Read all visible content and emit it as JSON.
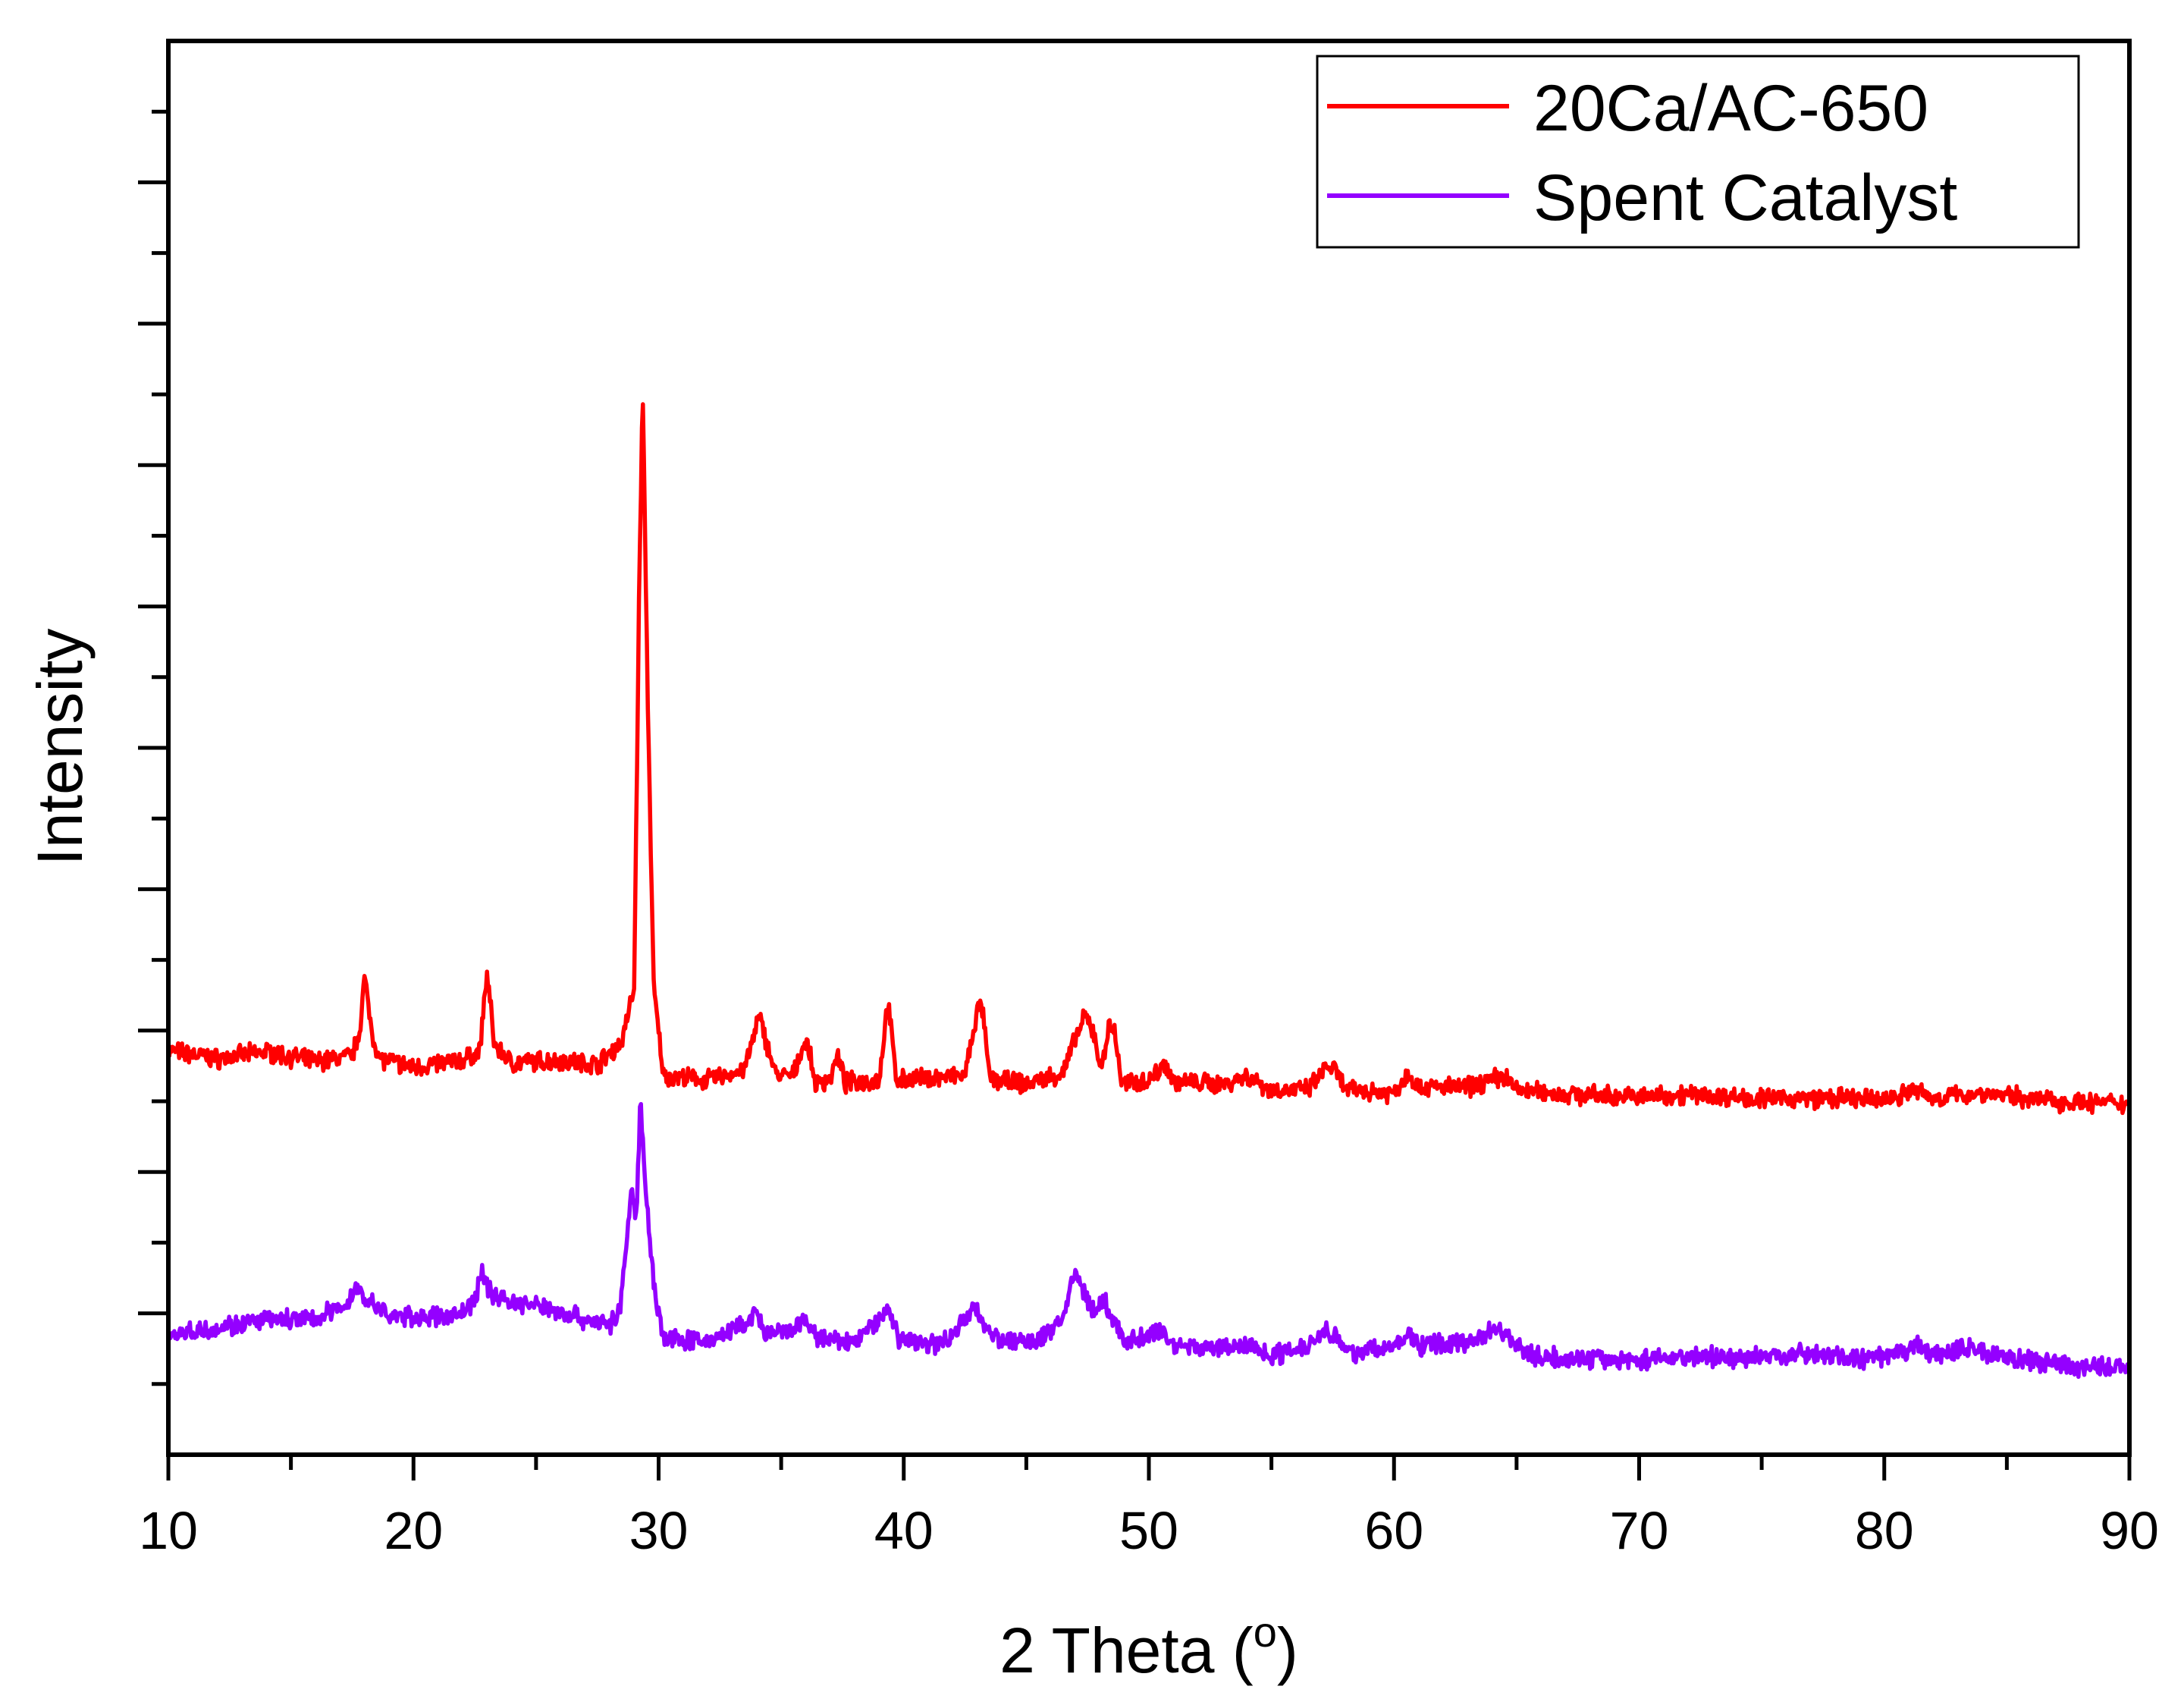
{
  "chart_data": {
    "type": "line",
    "title": "",
    "xlabel": "2 Theta (",
    "xlabel_superscript": "o",
    "xlabel_suffix": ")",
    "ylabel": "Intensity",
    "xlim": [
      10,
      90
    ],
    "ylim": [
      0,
      1000
    ],
    "x_ticks": [
      10,
      20,
      30,
      40,
      50,
      60,
      70,
      80,
      90
    ],
    "y_tick_labels_shown": false,
    "grid": false,
    "legend_position": "top-right",
    "series": [
      {
        "name": "20Ca/AC-650",
        "color": "#ff0000",
        "points": [
          [
            10,
            286
          ],
          [
            12,
            280
          ],
          [
            14,
            285
          ],
          [
            16,
            278
          ],
          [
            17.5,
            282
          ],
          [
            17.8,
            300
          ],
          [
            18,
            337
          ],
          [
            18.3,
            300
          ],
          [
            18.6,
            280
          ],
          [
            20,
            274
          ],
          [
            22,
            279
          ],
          [
            22.7,
            285
          ],
          [
            23.0,
            341
          ],
          [
            23.3,
            290
          ],
          [
            24,
            277
          ],
          [
            26,
            279
          ],
          [
            27.5,
            276
          ],
          [
            28.5,
            292
          ],
          [
            29.0,
            330
          ],
          [
            29.2,
            600
          ],
          [
            29.35,
            755
          ],
          [
            29.55,
            540
          ],
          [
            29.8,
            330
          ],
          [
            30.2,
            268
          ],
          [
            32,
            265
          ],
          [
            33.5,
            272
          ],
          [
            33.9,
            297
          ],
          [
            34.1,
            310
          ],
          [
            34.4,
            292
          ],
          [
            34.8,
            268
          ],
          [
            35.5,
            268
          ],
          [
            35.9,
            291
          ],
          [
            36.1,
            289
          ],
          [
            36.4,
            262
          ],
          [
            37.0,
            266
          ],
          [
            37.3,
            282
          ],
          [
            37.6,
            263
          ],
          [
            39.0,
            265
          ],
          [
            39.35,
            321
          ],
          [
            39.7,
            265
          ],
          [
            42.5,
            268
          ],
          [
            43.0,
            314
          ],
          [
            43.2,
            316
          ],
          [
            43.5,
            266
          ],
          [
            45.0,
            262
          ],
          [
            46.5,
            270
          ],
          [
            47.0,
            294
          ],
          [
            47.4,
            310
          ],
          [
            47.8,
            297
          ],
          [
            48.0,
            272
          ],
          [
            48.4,
            303
          ],
          [
            48.6,
            300
          ],
          [
            48.9,
            262
          ],
          [
            50.0,
            265
          ],
          [
            50.7,
            277
          ],
          [
            51.0,
            264
          ],
          [
            53.0,
            262
          ],
          [
            54.0,
            268
          ],
          [
            55.0,
            258
          ],
          [
            56.5,
            258
          ],
          [
            57.3,
            275
          ],
          [
            57.6,
            272
          ],
          [
            58.0,
            258
          ],
          [
            60.0,
            256
          ],
          [
            60.6,
            270
          ],
          [
            61.0,
            260
          ],
          [
            63.0,
            260
          ],
          [
            64.5,
            268
          ],
          [
            65.0,
            258
          ],
          [
            67.0,
            255
          ],
          [
            70.0,
            253
          ],
          [
            72.0,
            255
          ],
          [
            75.0,
            252
          ],
          [
            78.0,
            252
          ],
          [
            80.0,
            251
          ],
          [
            81.3,
            258
          ],
          [
            82.0,
            252
          ],
          [
            84.0,
            256
          ],
          [
            85.0,
            254
          ],
          [
            87.0,
            250
          ],
          [
            90,
            248
          ]
        ]
      },
      {
        "name": "Spent Catalyst",
        "color": "#9400ff",
        "points": [
          [
            10,
            85
          ],
          [
            12,
            90
          ],
          [
            14,
            95
          ],
          [
            16,
            96
          ],
          [
            17.3,
            107
          ],
          [
            17.7,
            118
          ],
          [
            18.2,
            108
          ],
          [
            19,
            98
          ],
          [
            21,
            97
          ],
          [
            22.0,
            100
          ],
          [
            22.5,
            110
          ],
          [
            22.8,
            128
          ],
          [
            23.2,
            114
          ],
          [
            24,
            108
          ],
          [
            25.5,
            104
          ],
          [
            27,
            96
          ],
          [
            28.0,
            92
          ],
          [
            28.4,
            100
          ],
          [
            28.9,
            185
          ],
          [
            29.1,
            170
          ],
          [
            29.25,
            250
          ],
          [
            29.5,
            185
          ],
          [
            29.8,
            120
          ],
          [
            30.2,
            82
          ],
          [
            32,
            80
          ],
          [
            33.5,
            92
          ],
          [
            34.0,
            100
          ],
          [
            34.4,
            84
          ],
          [
            35.5,
            88
          ],
          [
            36.0,
            95
          ],
          [
            36.5,
            82
          ],
          [
            38.0,
            79
          ],
          [
            39.0,
            96
          ],
          [
            39.4,
            104
          ],
          [
            39.8,
            82
          ],
          [
            41.5,
            78
          ],
          [
            42.5,
            95
          ],
          [
            42.9,
            104
          ],
          [
            43.4,
            90
          ],
          [
            44.0,
            80
          ],
          [
            45.5,
            80
          ],
          [
            46.5,
            98
          ],
          [
            47.0,
            128
          ],
          [
            47.3,
            118
          ],
          [
            47.7,
            102
          ],
          [
            48.2,
            108
          ],
          [
            48.5,
            96
          ],
          [
            49.0,
            80
          ],
          [
            50,
            84
          ],
          [
            50.5,
            88
          ],
          [
            51.0,
            78
          ],
          [
            53.0,
            75
          ],
          [
            54.0,
            78
          ],
          [
            55.0,
            70
          ],
          [
            56.5,
            78
          ],
          [
            57.2,
            89
          ],
          [
            57.6,
            85
          ],
          [
            58.0,
            72
          ],
          [
            60.0,
            76
          ],
          [
            60.6,
            85
          ],
          [
            61.0,
            77
          ],
          [
            63.0,
            80
          ],
          [
            64.2,
            90
          ],
          [
            64.7,
            84
          ],
          [
            65.5,
            70
          ],
          [
            67,
            68
          ],
          [
            70,
            67
          ],
          [
            72,
            70
          ],
          [
            74,
            68
          ],
          [
            77,
            72
          ],
          [
            79,
            67
          ],
          [
            80.5,
            70
          ],
          [
            81.3,
            78
          ],
          [
            82,
            70
          ],
          [
            83.5,
            76
          ],
          [
            84.2,
            72
          ],
          [
            86,
            66
          ],
          [
            88,
            62
          ],
          [
            90,
            62
          ]
        ]
      }
    ]
  }
}
